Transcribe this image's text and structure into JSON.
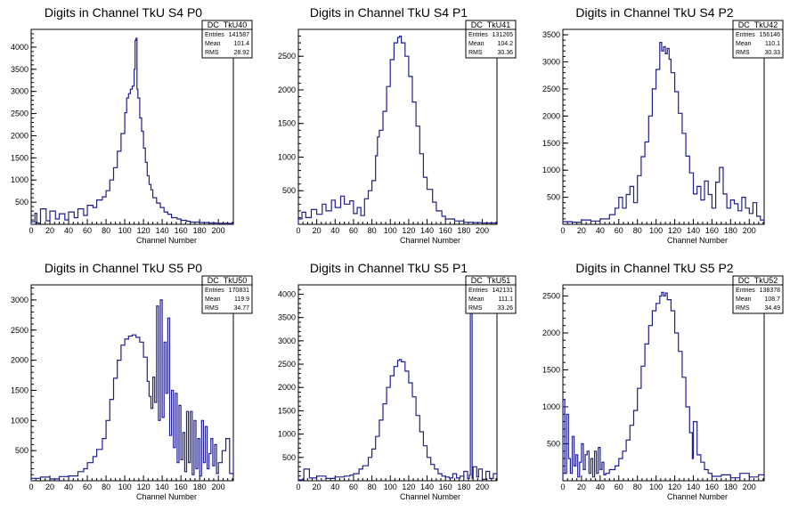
{
  "chart_data": [
    {
      "type": "line",
      "title": "Digits in Channel TkU S4 P0",
      "xlabel": "Channel Number",
      "ylabel": "",
      "xlim": [
        0,
        216
      ],
      "ylim": [
        0,
        4400
      ],
      "xticks": [
        0,
        20,
        40,
        60,
        80,
        100,
        120,
        140,
        160,
        180,
        200
      ],
      "yticks": [
        500,
        1000,
        1500,
        2000,
        2500,
        3000,
        3500,
        4000
      ],
      "stats": {
        "name": "DC_TkU40",
        "entries": "141587",
        "mean": "101.4",
        "rms": "28.92"
      },
      "x": [
        0,
        4,
        6,
        10,
        16,
        20,
        26,
        30,
        36,
        40,
        46,
        50,
        56,
        60,
        66,
        70,
        76,
        80,
        84,
        88,
        92,
        96,
        100,
        102,
        104,
        106,
        108,
        110,
        111,
        112,
        113,
        114,
        116,
        118,
        120,
        122,
        124,
        126,
        128,
        130,
        134,
        138,
        142,
        146,
        150,
        156,
        160,
        166,
        170,
        180,
        190,
        200,
        210,
        216
      ],
      "y": [
        60,
        250,
        30,
        350,
        80,
        300,
        120,
        240,
        100,
        280,
        150,
        350,
        200,
        430,
        380,
        550,
        620,
        760,
        1000,
        1280,
        1650,
        2050,
        2520,
        2850,
        2950,
        3050,
        3120,
        3500,
        4150,
        4200,
        3050,
        2850,
        2400,
        2100,
        1720,
        1400,
        1100,
        900,
        780,
        600,
        480,
        380,
        280,
        230,
        150,
        120,
        90,
        70,
        50,
        40,
        30,
        25,
        20,
        20
      ]
    },
    {
      "type": "line",
      "title": "Digits in Channel TkU S4 P1",
      "xlabel": "Channel Number",
      "ylabel": "",
      "xlim": [
        0,
        216
      ],
      "ylim": [
        0,
        2900
      ],
      "xticks": [
        0,
        20,
        40,
        60,
        80,
        100,
        120,
        140,
        160,
        180,
        200
      ],
      "yticks": [
        500,
        1000,
        1500,
        2000,
        2500
      ],
      "stats": {
        "name": "DC_TkU41",
        "entries": "131265",
        "mean": "104.2",
        "rms": "30.36"
      },
      "x": [
        0,
        4,
        8,
        14,
        20,
        26,
        30,
        36,
        40,
        46,
        50,
        56,
        60,
        64,
        68,
        72,
        76,
        80,
        84,
        86,
        88,
        92,
        96,
        100,
        104,
        108,
        110,
        112,
        116,
        120,
        124,
        128,
        132,
        136,
        140,
        146,
        150,
        156,
        160,
        170,
        180,
        190,
        200,
        216
      ],
      "y": [
        80,
        180,
        100,
        220,
        150,
        300,
        200,
        360,
        250,
        420,
        300,
        350,
        160,
        250,
        130,
        380,
        500,
        650,
        1020,
        1300,
        1400,
        1680,
        2050,
        2450,
        2700,
        2780,
        2800,
        2700,
        2500,
        2200,
        1820,
        1460,
        1050,
        700,
        520,
        330,
        200,
        120,
        80,
        50,
        30,
        25,
        20,
        15
      ]
    },
    {
      "type": "line",
      "title": "Digits in Channel TkU S4 P2",
      "xlabel": "Channel Number",
      "ylabel": "",
      "xlim": [
        0,
        216
      ],
      "ylim": [
        0,
        3600
      ],
      "xticks": [
        0,
        20,
        40,
        60,
        80,
        100,
        120,
        140,
        160,
        180,
        200
      ],
      "yticks": [
        500,
        1000,
        1500,
        2000,
        2500,
        3000,
        3500
      ],
      "stats": {
        "name": "DC_TkU42",
        "entries": "156146",
        "mean": "110.1",
        "rms": "30.33"
      },
      "x": [
        0,
        10,
        20,
        30,
        40,
        50,
        56,
        60,
        64,
        68,
        72,
        76,
        80,
        84,
        88,
        92,
        96,
        100,
        104,
        106,
        108,
        110,
        112,
        114,
        116,
        120,
        124,
        128,
        132,
        136,
        140,
        144,
        148,
        152,
        156,
        160,
        164,
        168,
        172,
        176,
        180,
        184,
        188,
        192,
        196,
        200,
        204,
        208,
        212,
        216
      ],
      "y": [
        50,
        40,
        80,
        60,
        100,
        180,
        300,
        500,
        300,
        550,
        700,
        400,
        900,
        1250,
        1520,
        2000,
        2500,
        2860,
        3360,
        3200,
        3280,
        3150,
        3250,
        3050,
        2800,
        2450,
        2050,
        1680,
        1260,
        950,
        560,
        700,
        450,
        800,
        550,
        300,
        780,
        1050,
        560,
        300,
        450,
        380,
        250,
        500,
        300,
        200,
        400,
        150,
        80,
        30
      ]
    },
    {
      "type": "line",
      "title": "Digits in Channel TkU S5 P0",
      "xlabel": "Channel Number",
      "ylabel": "",
      "xlim": [
        0,
        216
      ],
      "ylim": [
        0,
        3250
      ],
      "xticks": [
        0,
        20,
        40,
        60,
        80,
        100,
        120,
        140,
        160,
        180,
        200
      ],
      "yticks": [
        500,
        1000,
        1500,
        2000,
        2500,
        3000
      ],
      "stats": {
        "name": "DC_TkU50",
        "entries": "170831",
        "mean": "119.9",
        "rms": "34.77"
      },
      "x": [
        0,
        10,
        20,
        30,
        40,
        50,
        56,
        60,
        66,
        70,
        76,
        80,
        84,
        88,
        92,
        96,
        100,
        104,
        108,
        112,
        116,
        120,
        124,
        126,
        128,
        130,
        132,
        134,
        136,
        138,
        140,
        142,
        144,
        146,
        148,
        150,
        152,
        154,
        156,
        158,
        160,
        162,
        164,
        166,
        168,
        170,
        172,
        174,
        176,
        178,
        180,
        182,
        184,
        186,
        188,
        190,
        192,
        194,
        196,
        198,
        200,
        204,
        208,
        212,
        216
      ],
      "y": [
        40,
        60,
        30,
        70,
        80,
        150,
        200,
        300,
        400,
        520,
        700,
        1000,
        1350,
        1700,
        2000,
        2250,
        2350,
        2400,
        2420,
        2380,
        2300,
        2050,
        1650,
        1400,
        1200,
        1720,
        1300,
        2900,
        1000,
        3000,
        1050,
        2300,
        1450,
        2700,
        750,
        1500,
        550,
        1450,
        300,
        1250,
        350,
        800,
        150,
        1150,
        300,
        1150,
        100,
        1000,
        200,
        700,
        80,
        1000,
        300,
        900,
        200,
        450,
        700,
        250,
        600,
        120,
        300,
        500,
        700,
        120,
        400
      ]
    },
    {
      "type": "line",
      "title": "Digits in Channel TkU S5 P1",
      "xlabel": "Channel Number",
      "ylabel": "",
      "xlim": [
        0,
        216
      ],
      "ylim": [
        0,
        4200
      ],
      "xticks": [
        0,
        20,
        40,
        60,
        80,
        100,
        120,
        140,
        160,
        180,
        200
      ],
      "yticks": [
        500,
        1000,
        1500,
        2000,
        2500,
        3000,
        3500,
        4000
      ],
      "stats": {
        "name": "DC_TkU51",
        "entries": "142131",
        "mean": "111.1",
        "rms": "33.26"
      },
      "x": [
        0,
        6,
        12,
        20,
        30,
        40,
        50,
        56,
        60,
        66,
        70,
        76,
        80,
        84,
        88,
        92,
        96,
        100,
        104,
        108,
        110,
        112,
        116,
        120,
        124,
        128,
        132,
        136,
        140,
        144,
        148,
        152,
        156,
        160,
        164,
        168,
        172,
        176,
        180,
        184,
        186,
        187,
        188,
        189,
        190,
        194,
        196,
        200,
        204,
        208,
        212,
        216
      ],
      "y": [
        20,
        250,
        60,
        100,
        50,
        80,
        100,
        120,
        150,
        250,
        320,
        500,
        680,
        950,
        1300,
        1650,
        2000,
        2250,
        2450,
        2580,
        2600,
        2550,
        2350,
        2100,
        1800,
        1400,
        1050,
        750,
        500,
        350,
        250,
        150,
        100,
        80,
        60,
        150,
        60,
        100,
        200,
        50,
        120,
        3800,
        3800,
        50,
        300,
        80,
        250,
        30,
        200,
        50,
        150,
        80
      ]
    },
    {
      "type": "line",
      "title": "Digits in Channel TkU S5 P2",
      "xlabel": "Channel Number",
      "ylabel": "",
      "xlim": [
        0,
        216
      ],
      "ylim": [
        0,
        2650
      ],
      "xticks": [
        0,
        20,
        40,
        60,
        80,
        100,
        120,
        140,
        160,
        180,
        200
      ],
      "yticks": [
        500,
        1000,
        1500,
        2000,
        2500
      ],
      "stats": {
        "name": "DC_TkU52",
        "entries": "138378",
        "mean": "108.7",
        "rms": "34.49"
      },
      "x": [
        0,
        2,
        4,
        6,
        8,
        10,
        12,
        14,
        16,
        18,
        20,
        22,
        24,
        26,
        28,
        30,
        32,
        34,
        36,
        38,
        40,
        42,
        44,
        46,
        50,
        56,
        60,
        64,
        68,
        72,
        76,
        80,
        84,
        88,
        92,
        96,
        100,
        104,
        106,
        108,
        110,
        112,
        116,
        120,
        124,
        128,
        132,
        136,
        139,
        140,
        141,
        144,
        148,
        152,
        156,
        160,
        170,
        180,
        190,
        200,
        210,
        216
      ],
      "y": [
        1100,
        100,
        900,
        300,
        100,
        600,
        200,
        350,
        50,
        250,
        500,
        150,
        350,
        400,
        100,
        300,
        50,
        400,
        100,
        450,
        150,
        250,
        80,
        100,
        150,
        200,
        300,
        400,
        550,
        750,
        950,
        1250,
        1550,
        1850,
        2100,
        2300,
        2400,
        2500,
        2550,
        2500,
        2540,
        2450,
        2300,
        2000,
        1750,
        1400,
        1000,
        650,
        300,
        800,
        800,
        350,
        250,
        150,
        100,
        60,
        80,
        40,
        100,
        50,
        80,
        60
      ]
    }
  ]
}
